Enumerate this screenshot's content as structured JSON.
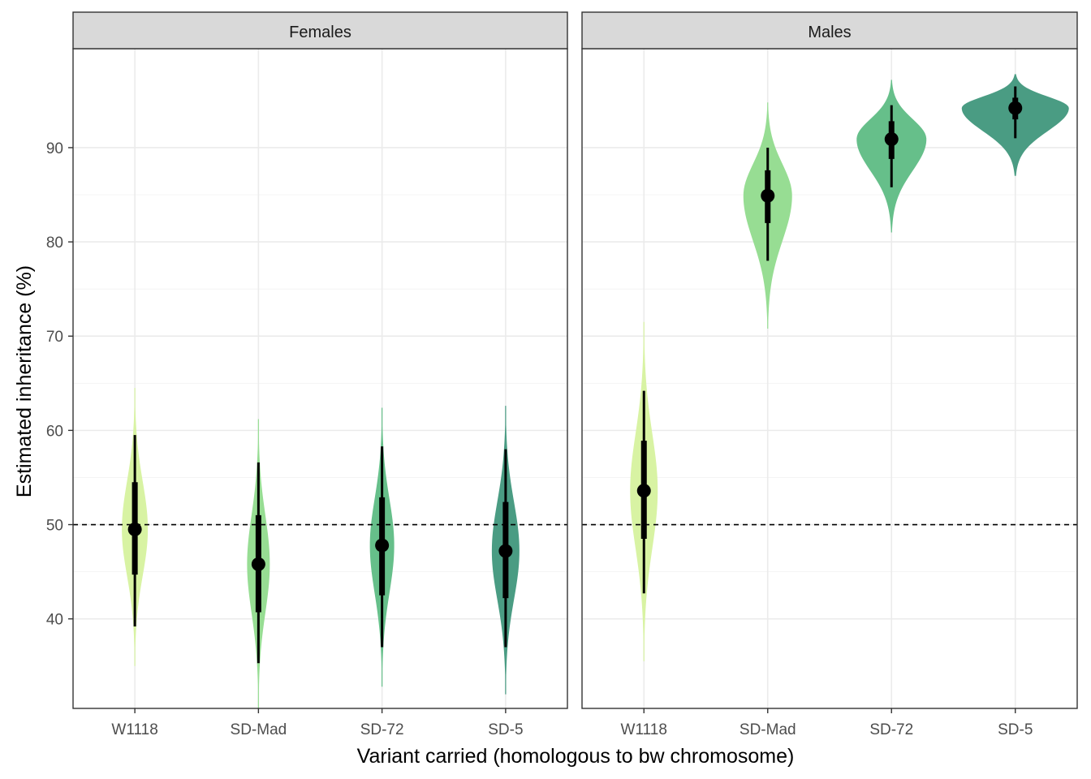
{
  "chart_data": {
    "type": "violin",
    "xlabel": "Variant carried (homologous to bw chromosome)",
    "ylabel": "Estimated inheritance (%)",
    "ylim": [
      30.5,
      100.5
    ],
    "yticks": [
      40,
      50,
      60,
      70,
      80,
      90
    ],
    "y_tick_labels": [
      "40",
      "50",
      "60",
      "70",
      "80",
      "90"
    ],
    "reference_line": 50,
    "categories": [
      "W1118",
      "SD-Mad",
      "SD-72",
      "SD-5"
    ],
    "colors": {
      "W1118": "#d8f3a3",
      "SD-Mad": "#97dd93",
      "SD-72": "#66bf8a",
      "SD-5": "#4a9c83"
    },
    "panels": [
      {
        "title": "Females",
        "series": [
          {
            "category": "W1118",
            "median": 49.5,
            "inner_low": 44.7,
            "inner_high": 54.5,
            "outer_low": 39.2,
            "outer_high": 59.5,
            "min": 35.0,
            "max": 64.5,
            "half_width": 16
          },
          {
            "category": "SD-Mad",
            "median": 45.8,
            "inner_low": 40.7,
            "inner_high": 51.0,
            "outer_low": 35.3,
            "outer_high": 56.6,
            "min": 30.5,
            "max": 61.2,
            "half_width": 14
          },
          {
            "category": "SD-72",
            "median": 47.8,
            "inner_low": 42.5,
            "inner_high": 52.9,
            "outer_low": 37.0,
            "outer_high": 58.3,
            "min": 32.8,
            "max": 62.4,
            "half_width": 15
          },
          {
            "category": "SD-5",
            "median": 47.2,
            "inner_low": 42.2,
            "inner_high": 52.4,
            "outer_low": 37.0,
            "outer_high": 58.0,
            "min": 32.0,
            "max": 62.6,
            "half_width": 17
          }
        ]
      },
      {
        "title": "Males",
        "series": [
          {
            "category": "W1118",
            "median": 53.6,
            "inner_low": 48.5,
            "inner_high": 58.9,
            "outer_low": 42.7,
            "outer_high": 64.2,
            "min": 35.5,
            "max": 71.5,
            "half_width": 17
          },
          {
            "category": "SD-Mad",
            "median": 84.9,
            "inner_low": 82.0,
            "inner_high": 87.6,
            "outer_low": 78.0,
            "outer_high": 90.0,
            "min": 70.8,
            "max": 94.8,
            "half_width": 30
          },
          {
            "category": "SD-72",
            "median": 90.9,
            "inner_low": 88.8,
            "inner_high": 92.8,
            "outer_low": 85.8,
            "outer_high": 94.5,
            "min": 81.0,
            "max": 97.2,
            "half_width": 43
          },
          {
            "category": "SD-5",
            "median": 94.2,
            "inner_low": 93.0,
            "inner_high": 95.3,
            "outer_low": 91.0,
            "outer_high": 96.5,
            "min": 87.0,
            "max": 97.8,
            "half_width": 66
          }
        ]
      }
    ]
  }
}
